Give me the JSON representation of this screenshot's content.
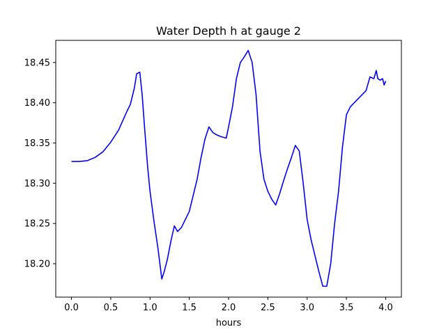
{
  "chart_data": {
    "type": "line",
    "title": "Water Depth h at gauge 2",
    "xlabel": "hours",
    "ylabel": "",
    "xlim": [
      -0.2,
      4.2
    ],
    "ylim": [
      18.1585,
      18.4775
    ],
    "xticks": [
      0.0,
      0.5,
      1.0,
      1.5,
      2.0,
      2.5,
      3.0,
      3.5,
      4.0
    ],
    "xtick_labels": [
      "0.0",
      "0.5",
      "1.0",
      "1.5",
      "2.0",
      "2.5",
      "3.0",
      "3.5",
      "4.0"
    ],
    "yticks": [
      18.2,
      18.25,
      18.3,
      18.35,
      18.4,
      18.45
    ],
    "ytick_labels": [
      "18.20",
      "18.25",
      "18.30",
      "18.35",
      "18.40",
      "18.45"
    ],
    "grid": false,
    "series": [
      {
        "color": "#0000ff",
        "x": [
          0.0,
          0.1,
          0.2,
          0.3,
          0.4,
          0.5,
          0.6,
          0.7,
          0.75,
          0.8,
          0.83,
          0.87,
          0.9,
          0.93,
          0.97,
          1.0,
          1.05,
          1.1,
          1.15,
          1.18,
          1.22,
          1.27,
          1.31,
          1.35,
          1.4,
          1.45,
          1.5,
          1.55,
          1.6,
          1.65,
          1.7,
          1.75,
          1.8,
          1.85,
          1.9,
          1.97,
          2.0,
          2.05,
          2.1,
          2.15,
          2.2,
          2.25,
          2.3,
          2.35,
          2.4,
          2.45,
          2.5,
          2.55,
          2.6,
          2.65,
          2.7,
          2.75,
          2.8,
          2.85,
          2.9,
          2.95,
          3.0,
          3.05,
          3.1,
          3.15,
          3.2,
          3.25,
          3.3,
          3.35,
          3.4,
          3.45,
          3.5,
          3.55,
          3.6,
          3.65,
          3.7,
          3.75,
          3.8,
          3.85,
          3.88,
          3.9,
          3.93,
          3.96,
          3.98,
          4.0
        ],
        "y": [
          18.327,
          18.327,
          18.328,
          18.332,
          18.339,
          18.351,
          18.366,
          18.388,
          18.398,
          18.418,
          18.436,
          18.438,
          18.41,
          18.37,
          18.32,
          18.29,
          18.253,
          18.22,
          18.181,
          18.19,
          18.205,
          18.23,
          18.247,
          18.24,
          18.245,
          18.255,
          18.265,
          18.285,
          18.305,
          18.332,
          18.355,
          18.37,
          18.363,
          18.36,
          18.358,
          18.356,
          18.37,
          18.395,
          18.43,
          18.45,
          18.457,
          18.465,
          18.45,
          18.41,
          18.34,
          18.305,
          18.29,
          18.28,
          18.273,
          18.287,
          18.303,
          18.318,
          18.332,
          18.347,
          18.34,
          18.3,
          18.255,
          18.23,
          18.21,
          18.19,
          18.172,
          18.172,
          18.2,
          18.25,
          18.29,
          18.345,
          18.385,
          18.395,
          18.4,
          18.405,
          18.41,
          18.415,
          18.432,
          18.43,
          18.44,
          18.43,
          18.428,
          18.43,
          18.422,
          18.427
        ]
      }
    ]
  }
}
